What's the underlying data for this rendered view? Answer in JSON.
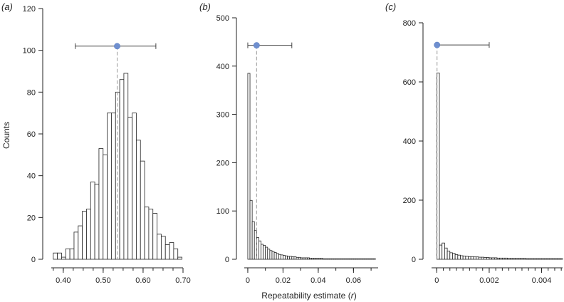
{
  "chart_data": [
    {
      "type": "bar",
      "panel_label": "(a)",
      "ylabel": "Counts",
      "xlabel": "",
      "xlim": [
        0.37,
        0.7
      ],
      "ylim": [
        0,
        120
      ],
      "x_ticks": [
        0.4,
        0.5,
        0.6,
        0.7
      ],
      "x_tick_labels": [
        "0.40",
        "0.50",
        "0.60",
        "0.70"
      ],
      "x_minor_step": 0.025,
      "y_ticks": [
        0,
        20,
        40,
        60,
        80,
        100,
        120
      ],
      "y_tick_labels": [
        "0",
        "20",
        "40",
        "60",
        "80",
        "100",
        "120"
      ],
      "bin_start": 0.375,
      "bin_width": 0.0104,
      "values": [
        3,
        3,
        1,
        5,
        5,
        13,
        16,
        23,
        24,
        37,
        36,
        53,
        50,
        70,
        70,
        80,
        86,
        89,
        68,
        70,
        57,
        47,
        25,
        24,
        22,
        12,
        11,
        7,
        8,
        5,
        1
      ],
      "point_estimate": 0.535,
      "ci": [
        0.43,
        0.632
      ],
      "ci_y": 102
    },
    {
      "type": "bar",
      "panel_label": "(b)",
      "ylabel": "",
      "xlabel": "Repeatability estimate (r)",
      "xlim": [
        -0.002,
        0.074
      ],
      "ylim": [
        0,
        500
      ],
      "x_ticks": [
        0,
        0.02,
        0.04,
        0.06
      ],
      "x_tick_labels": [
        "0",
        "0.02",
        "0.04",
        "0.06"
      ],
      "x_minor_step": 0.01,
      "y_ticks": [
        0,
        100,
        200,
        300,
        400,
        500
      ],
      "y_tick_labels": [
        "0",
        "100",
        "200",
        "300",
        "400",
        "500"
      ],
      "bin_start": 0,
      "bin_width": 0.00125,
      "values": [
        385,
        122,
        78,
        60,
        45,
        38,
        31,
        29,
        25,
        21,
        18,
        16,
        14,
        12,
        10,
        9,
        8,
        7,
        6,
        6,
        5,
        5,
        4,
        4,
        3,
        3,
        3,
        3,
        2,
        2,
        2,
        2,
        2,
        2,
        1,
        1,
        1,
        1,
        1,
        1,
        1,
        1,
        1,
        1,
        1,
        1,
        1,
        1,
        1,
        1,
        1,
        1,
        1,
        1,
        1,
        1,
        1,
        1
      ],
      "point_estimate": 0.005,
      "ci": [
        0,
        0.025
      ],
      "ci_y": 443
    },
    {
      "type": "bar",
      "panel_label": "(c)",
      "ylabel": "",
      "xlabel": "",
      "xlim": [
        -0.0002,
        0.0048
      ],
      "ylim": [
        0,
        800
      ],
      "x_ticks": [
        0,
        0.002,
        0.004
      ],
      "x_tick_labels": [
        "0",
        "0.002",
        "0.004"
      ],
      "x_minor_step": 0.00025,
      "y_ticks": [
        0,
        200,
        400,
        600,
        800
      ],
      "y_tick_labels": [
        "0",
        "200",
        "400",
        "600",
        "800"
      ],
      "bin_start": 0,
      "bin_width": 0.0001,
      "values": [
        630,
        48,
        55,
        38,
        28,
        22,
        20,
        16,
        14,
        12,
        11,
        10,
        9,
        9,
        8,
        8,
        7,
        7,
        6,
        6,
        5,
        5,
        5,
        4,
        4,
        4,
        4,
        3,
        3,
        3,
        3,
        3,
        3,
        3,
        2,
        2,
        2,
        2,
        2,
        2,
        2,
        2,
        2,
        2,
        2,
        2,
        2,
        2
      ],
      "point_estimate": 1e-05,
      "ci": [
        0,
        0.002
      ],
      "ci_y": 725
    }
  ]
}
